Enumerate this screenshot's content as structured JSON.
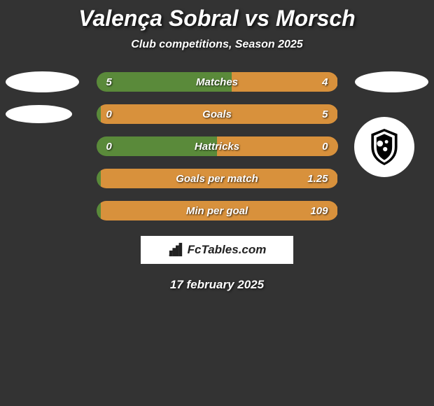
{
  "title": "Valença Sobral vs Morsch",
  "subtitle": "Club competitions, Season 2025",
  "date": "17 february 2025",
  "brand_text": "FcTables.com",
  "colors": {
    "background": "#333333",
    "bar_left": "#5a8a3a",
    "bar_right": "#d8913c",
    "ellipse": "#ffffff",
    "brand_bg": "#ffffff",
    "text": "#ffffff"
  },
  "stats": [
    {
      "label": "Matches",
      "left_value": "5",
      "right_value": "4",
      "left_pct": 56,
      "right_pct": 44
    },
    {
      "label": "Goals",
      "left_value": "0",
      "right_value": "5",
      "left_pct": 2,
      "right_pct": 98
    },
    {
      "label": "Hattricks",
      "left_value": "0",
      "right_value": "0",
      "left_pct": 50,
      "right_pct": 50
    },
    {
      "label": "Goals per match",
      "left_value": "",
      "right_value": "1.25",
      "left_pct": 2,
      "right_pct": 98
    },
    {
      "label": "Min per goal",
      "left_value": "",
      "right_value": "109",
      "left_pct": 2,
      "right_pct": 98
    }
  ],
  "side_decorations": {
    "left_ellipse_rows": [
      0,
      1
    ],
    "right_ellipse_rows": [
      0
    ],
    "club_logo_row": 2
  }
}
